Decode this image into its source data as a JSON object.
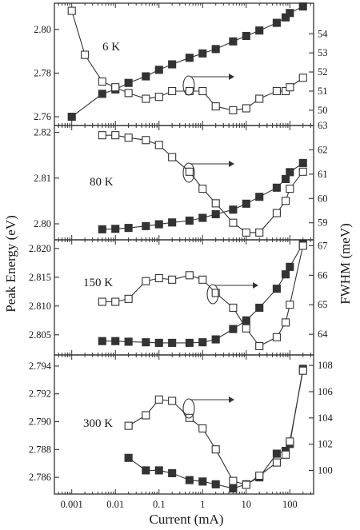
{
  "chart_data": {
    "type": "scatter",
    "xlabel": "Current (mA)",
    "ylabel_left": "Peak Energy (eV)",
    "ylabel_right": "FWHM (meV)",
    "xscale": "log",
    "xlim": [
      0.0004,
      350
    ],
    "xticks": [
      "0.001",
      "0.01",
      "0.1",
      "1",
      "10",
      "100"
    ],
    "xtick_values": [
      0.001,
      0.01,
      0.1,
      1,
      10,
      100
    ],
    "colors": {
      "filled": "#333333",
      "open": "#ffffff",
      "stroke": "#333333"
    },
    "panels": [
      {
        "temperature": "6 K",
        "ylim_left": [
          2.756,
          2.812
        ],
        "ylim_right": [
          49.2,
          55.6
        ],
        "left_ticks": [
          "2.76",
          "2.78",
          "2.80"
        ],
        "left_tick_values": [
          2.76,
          2.78,
          2.8
        ],
        "right_ticks": [
          "50",
          "51",
          "52",
          "53",
          "54"
        ],
        "right_tick_values": [
          50,
          51,
          52,
          53,
          54
        ],
        "series": [
          {
            "marker": "filled-square",
            "axis": "left",
            "x": [
              0.001,
              0.005,
              0.01,
              0.02,
              0.05,
              0.1,
              0.2,
              0.5,
              1,
              2,
              5,
              10,
              20,
              50,
              80,
              100,
              200
            ],
            "y": [
              2.76,
              2.7705,
              2.7725,
              2.7755,
              2.7785,
              2.7815,
              2.784,
              2.787,
              2.789,
              2.791,
              2.7945,
              2.797,
              2.7995,
              2.803,
              2.8055,
              2.8075,
              2.8105
            ]
          },
          {
            "marker": "open-square",
            "axis": "right",
            "x": [
              0.001,
              0.002,
              0.005,
              0.01,
              0.02,
              0.05,
              0.1,
              0.2,
              0.5,
              1,
              2,
              5,
              10,
              20,
              50,
              80,
              100,
              200
            ],
            "y": [
              55.2,
              52.9,
              51.5,
              51.2,
              50.9,
              50.6,
              50.7,
              51.0,
              51.0,
              51.0,
              50.2,
              50.0,
              50.1,
              50.6,
              51.0,
              51.0,
              51.2,
              51.7
            ]
          }
        ],
        "arrow": "right"
      },
      {
        "temperature": "80 K",
        "ylim_left": [
          2.7965,
          2.8215
        ],
        "ylim_right": [
          58.3,
          63.0
        ],
        "left_ticks": [
          "2.80",
          "2.81",
          "2.82"
        ],
        "left_tick_values": [
          2.8,
          2.81,
          2.82
        ],
        "right_ticks": [
          "59",
          "60",
          "61",
          "62",
          "63"
        ],
        "right_tick_values": [
          59,
          60,
          61,
          62,
          63
        ],
        "series": [
          {
            "marker": "filled-square",
            "axis": "left",
            "x": [
              0.005,
              0.01,
              0.02,
              0.05,
              0.1,
              0.2,
              0.5,
              1,
              2,
              5,
              10,
              20,
              50,
              80,
              100,
              200
            ],
            "y": [
              2.7988,
              2.7989,
              2.7991,
              2.7995,
              2.7999,
              2.8003,
              2.8007,
              2.8013,
              2.8021,
              2.8031,
              2.8044,
              2.8059,
              2.8079,
              2.8098,
              2.8113,
              2.8133
            ]
          },
          {
            "marker": "open-square",
            "axis": "right",
            "x": [
              0.005,
              0.01,
              0.02,
              0.05,
              0.1,
              0.2,
              0.5,
              1,
              2,
              5,
              10,
              20,
              50,
              80,
              100,
              200
            ],
            "y": [
              62.6,
              62.6,
              62.5,
              62.4,
              62.2,
              61.7,
              61.1,
              60.4,
              59.8,
              59.0,
              58.6,
              58.6,
              59.4,
              59.9,
              60.4,
              61.1
            ]
          }
        ],
        "arrow": "right"
      },
      {
        "temperature": "150 K",
        "ylim_left": [
          2.8015,
          2.8215
        ],
        "ylim_right": [
          63.3,
          67.2
        ],
        "left_ticks": [
          "2.805",
          "2.810",
          "2.815",
          "2.820"
        ],
        "left_tick_values": [
          2.805,
          2.81,
          2.815,
          2.82
        ],
        "right_ticks": [
          "64",
          "65",
          "66",
          "67"
        ],
        "right_tick_values": [
          64,
          65,
          66,
          67
        ],
        "series": [
          {
            "marker": "filled-square",
            "axis": "left",
            "x": [
              0.005,
              0.01,
              0.02,
              0.05,
              0.1,
              0.2,
              0.5,
              1,
              2,
              5,
              10,
              20,
              50,
              80,
              100,
              200
            ],
            "y": [
              2.8039,
              2.8039,
              2.8038,
              2.8037,
              2.8036,
              2.8036,
              2.8036,
              2.8037,
              2.8042,
              2.806,
              2.8075,
              2.8097,
              2.813,
              2.8155,
              2.8168,
              2.8208
            ]
          },
          {
            "marker": "open-square",
            "axis": "right",
            "x": [
              0.005,
              0.01,
              0.02,
              0.05,
              0.1,
              0.2,
              0.5,
              1,
              2,
              5,
              10,
              20,
              50,
              80,
              100,
              200
            ],
            "y": [
              65.1,
              65.1,
              65.2,
              65.8,
              65.9,
              65.85,
              66.0,
              65.85,
              65.4,
              64.9,
              64.2,
              63.6,
              63.9,
              64.4,
              65.0,
              67.0
            ]
          }
        ],
        "arrow": "right"
      },
      {
        "temperature": "300 K",
        "ylim_left": [
          2.7848,
          2.7948
        ],
        "ylim_right": [
          98.2,
          108.8
        ],
        "left_ticks": [
          "2.786",
          "2.788",
          "2.790",
          "2.792",
          "2.794"
        ],
        "left_tick_values": [
          2.786,
          2.788,
          2.79,
          2.792,
          2.794
        ],
        "right_ticks": [
          "100",
          "102",
          "104",
          "106",
          "108"
        ],
        "right_tick_values": [
          100,
          102,
          104,
          106,
          108
        ],
        "series": [
          {
            "marker": "filled-square",
            "axis": "left",
            "x": [
              0.02,
              0.05,
              0.1,
              0.2,
              0.5,
              1,
              2,
              5,
              10,
              20,
              50,
              80,
              100,
              200
            ],
            "y": [
              2.7874,
              2.7865,
              2.7865,
              2.7863,
              2.7858,
              2.7857,
              2.7855,
              2.7852,
              2.7855,
              2.786,
              2.7877,
              2.7879,
              2.7884,
              2.7938
            ]
          },
          {
            "marker": "open-square",
            "axis": "right",
            "x": [
              0.02,
              0.05,
              0.1,
              0.2,
              0.5,
              1,
              2,
              5,
              10,
              20,
              50,
              80,
              100,
              200
            ],
            "y": [
              103.4,
              104.2,
              105.4,
              105.3,
              104.0,
              103.2,
              101.6,
              99.2,
              98.9,
              99.6,
              100.6,
              101.2,
              102.2,
              107.6
            ]
          }
        ],
        "arrow": "right"
      }
    ]
  }
}
